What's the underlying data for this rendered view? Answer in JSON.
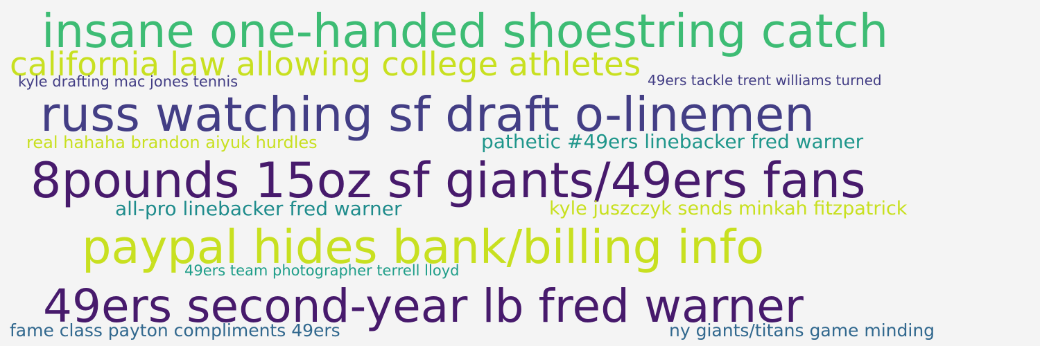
{
  "word_cloud": {
    "background_color": "#f4f4f4",
    "phrases": [
      {
        "text": "insane one-handed shoestring catch",
        "color": "#3dbc74"
      },
      {
        "text": "california law allowing college athletes",
        "color": "#c8e020"
      },
      {
        "text": "kyle drafting mac jones tennis",
        "color": "#433e85"
      },
      {
        "text": "49ers tackle trent williams turned",
        "color": "#433e85"
      },
      {
        "text": "russ watching sf draft o-linemen",
        "color": "#433e85"
      },
      {
        "text": "real hahaha brandon aiyuk hurdles",
        "color": "#c8e020"
      },
      {
        "text": "pathetic #49ers linebacker fred warner",
        "color": "#1f968b"
      },
      {
        "text": "8pounds 15oz sf giants/49ers fans",
        "color": "#471a6c"
      },
      {
        "text": "all-pro linebacker fred warner",
        "color": "#1f8c8c"
      },
      {
        "text": "kyle juszczyk sends minkah fitzpatrick",
        "color": "#c8e020"
      },
      {
        "text": "paypal hides bank/billing info",
        "color": "#c8e020"
      },
      {
        "text": "49ers team photographer terrell lloyd",
        "color": "#1f9e89"
      },
      {
        "text": "49ers second-year lb fred warner",
        "color": "#471a6c"
      },
      {
        "text": "fame class payton compliments 49ers",
        "color": "#31688e"
      },
      {
        "text": "ny giants/titans game minding",
        "color": "#31688e"
      }
    ]
  }
}
